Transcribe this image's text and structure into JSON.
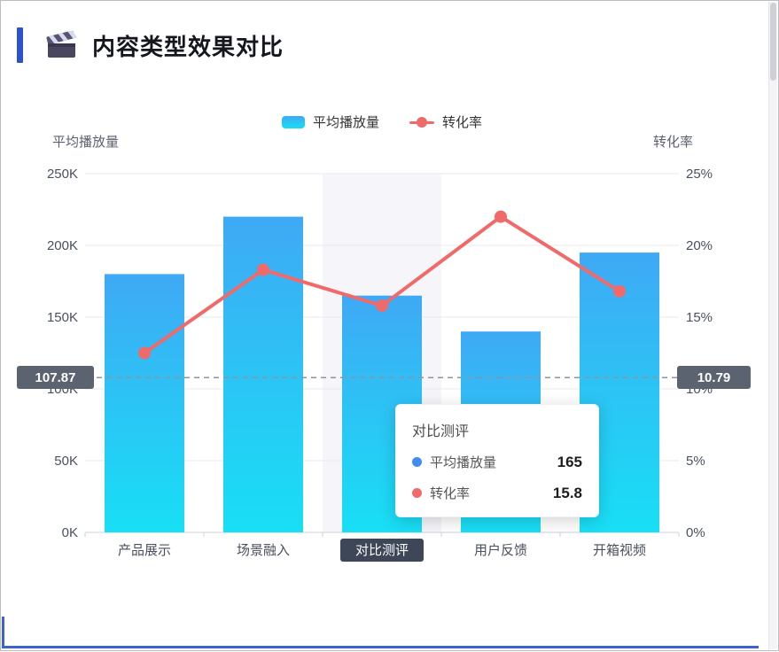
{
  "page": {
    "title": "内容类型效果对比",
    "icon": "clapper-icon",
    "accent_color": "#2d53cc"
  },
  "chart_data": {
    "type": "bar+line",
    "title": "内容类型效果对比",
    "categories": [
      "产品展示",
      "场景融入",
      "对比测评",
      "用户反馈",
      "开箱视频"
    ],
    "series": [
      {
        "name": "平均播放量",
        "type": "bar",
        "axis": "left",
        "unit": "K",
        "values": [
          180,
          220,
          165,
          140,
          195
        ],
        "gradient": [
          "#3fa9f5",
          "#18dff5"
        ]
      },
      {
        "name": "转化率",
        "type": "line",
        "axis": "right",
        "unit": "%",
        "values": [
          12.5,
          18.3,
          15.8,
          22,
          16.8
        ],
        "color": "#f06a6a"
      }
    ],
    "left_axis": {
      "name": "平均播放量",
      "min": 0,
      "max": 250,
      "ticks": [
        "0K",
        "50K",
        "100K",
        "150K",
        "200K",
        "250K"
      ]
    },
    "right_axis": {
      "name": "转化率",
      "min": 0,
      "max": 25,
      "ticks": [
        "0%",
        "5%",
        "10%",
        "15%",
        "20%",
        "25%"
      ]
    },
    "grid": true,
    "legend_position": "top-center",
    "highlighted_category": "对比测评",
    "highlight_label_bg": "#3d4757",
    "band_color": "#f0f0f7",
    "axis_pointer": {
      "left_value": "107.87",
      "right_value": "10.79",
      "badge_color": "#5c6370"
    }
  },
  "tooltip": {
    "title": "对比测评",
    "rows": [
      {
        "label": "平均播放量",
        "value": "165",
        "color": "#3f8ef0"
      },
      {
        "label": "转化率",
        "value": "15.8",
        "color": "#f06a6a"
      }
    ]
  }
}
